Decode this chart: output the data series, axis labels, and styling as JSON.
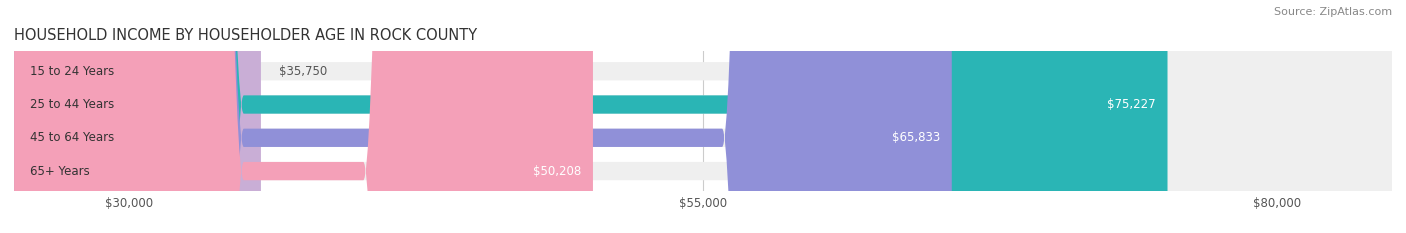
{
  "title": "HOUSEHOLD INCOME BY HOUSEHOLDER AGE IN ROCK COUNTY",
  "source": "Source: ZipAtlas.com",
  "categories": [
    "15 to 24 Years",
    "25 to 44 Years",
    "45 to 64 Years",
    "65+ Years"
  ],
  "values": [
    35750,
    75227,
    65833,
    50208
  ],
  "bar_colors": [
    "#c9aed6",
    "#2ab5b5",
    "#9090d8",
    "#f4a0b8"
  ],
  "bar_bg_color": "#efefef",
  "xlim_min": 25000,
  "xlim_max": 85000,
  "xticks": [
    30000,
    55000,
    80000
  ],
  "xtick_labels": [
    "$30,000",
    "$55,000",
    "$80,000"
  ],
  "value_label_color_inside": "#ffffff",
  "value_label_color_outside": "#555555",
  "background_color": "#ffffff",
  "bar_height": 0.55,
  "figsize": [
    14.06,
    2.33
  ],
  "dpi": 100
}
